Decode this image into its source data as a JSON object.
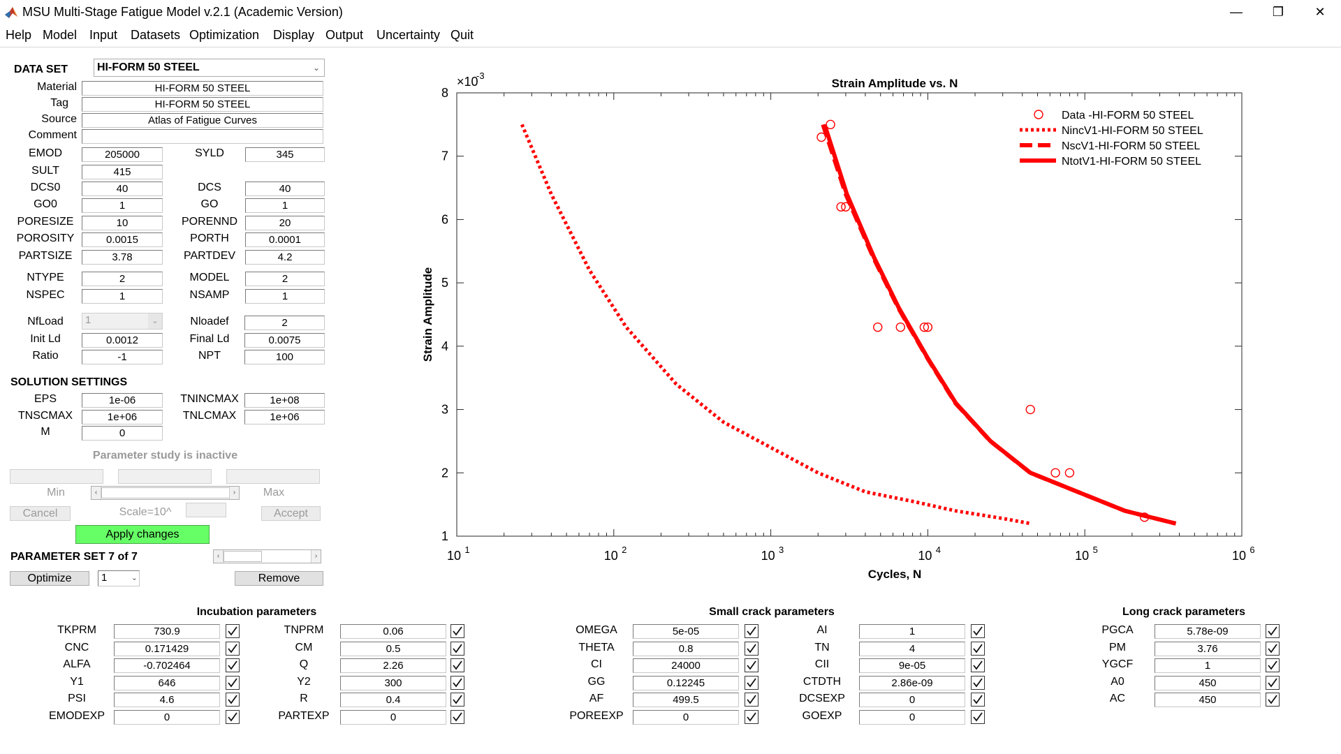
{
  "window": {
    "title": "MSU Multi-Stage Fatigue Model v.2.1 (Academic Version)",
    "minimize": "—",
    "restore": "❐",
    "close": "✕"
  },
  "menu": [
    "Help",
    "Model",
    "Input",
    "Datasets",
    "Optimization",
    "Display",
    "Output",
    "Uncertainty",
    "Quit"
  ],
  "dataset": {
    "label": "DATA SET",
    "selected": "HI-FORM 50 STEEL",
    "material_label": "Material",
    "material": "HI-FORM 50 STEEL",
    "tag_label": "Tag",
    "tag": "HI-FORM 50 STEEL",
    "source_label": "Source",
    "source": "Atlas of Fatigue Curves",
    "comment_label": "Comment",
    "comment": ""
  },
  "props_left": [
    {
      "label": "EMOD",
      "value": "205000"
    },
    {
      "label": "SULT",
      "value": "415"
    },
    {
      "label": "DCS0",
      "value": "40"
    },
    {
      "label": "GO0",
      "value": "1"
    },
    {
      "label": "PORESIZE",
      "value": "10"
    },
    {
      "label": "POROSITY",
      "value": "0.0015"
    },
    {
      "label": "PARTSIZE",
      "value": "3.78"
    },
    {
      "label": "NTYPE",
      "value": "2"
    },
    {
      "label": "NSPEC",
      "value": "1"
    }
  ],
  "props_right": [
    {
      "label": "SYLD",
      "value": "345"
    },
    {
      "label": "DCS",
      "value": "40"
    },
    {
      "label": "GO",
      "value": "1"
    },
    {
      "label": "PORENND",
      "value": "20"
    },
    {
      "label": "PORTH",
      "value": "0.0001"
    },
    {
      "label": "PARTDEV",
      "value": "4.2"
    },
    {
      "label": "MODEL",
      "value": "2"
    },
    {
      "label": "NSAMP",
      "value": "1"
    }
  ],
  "loading": {
    "nfload_label": "NfLoad",
    "nfload": "1",
    "initld_label": "Init Ld",
    "initld": "0.0012",
    "ratio_label": "Ratio",
    "ratio": "-1",
    "nloadef_label": "Nloadef",
    "nloadef": "2",
    "finalld_label": "Final Ld",
    "finalld": "0.0075",
    "npt_label": "NPT",
    "npt": "100"
  },
  "solution": {
    "header": "SOLUTION SETTINGS",
    "eps_label": "EPS",
    "eps": "1e-06",
    "tnscmax_label": "TNSCMAX",
    "tnscmax": "1e+06",
    "m_label": "M",
    "m": "0",
    "tnincmax_label": "TNINCMAX",
    "tnincmax": "1e+08",
    "tnlcmax_label": "TNLCMAX",
    "tnlcmax": "1e+06"
  },
  "param_study": {
    "status": "Parameter study is inactive",
    "min_label": "Min",
    "max_label": "Max",
    "cancel": "Cancel",
    "scale_label": "Scale=10^",
    "accept": "Accept",
    "apply": "Apply changes"
  },
  "param_set": {
    "label": "PARAMETER SET 7 of 7",
    "optimize": "Optimize",
    "selected": "1",
    "remove": "Remove"
  },
  "chart_data": {
    "type": "scatter",
    "title": "Strain Amplitude vs. N",
    "xlabel": "Cycles, N",
    "ylabel": "Strain Amplitude",
    "xscale": "log",
    "xlim": [
      10,
      1000000
    ],
    "ylim": [
      0.001,
      0.008
    ],
    "y_exponent_label": "×10",
    "y_exponent": "-3",
    "x_ticks": [
      10,
      100,
      1000,
      10000,
      100000,
      1000000
    ],
    "x_tick_bases": [
      "10",
      "10",
      "10",
      "10",
      "10",
      "10"
    ],
    "x_tick_exps": [
      "1",
      "2",
      "3",
      "4",
      "5",
      "6"
    ],
    "y_ticks": [
      0.001,
      0.002,
      0.003,
      0.004,
      0.005,
      0.006,
      0.007,
      0.008
    ],
    "y_tick_labels": [
      "1",
      "2",
      "3",
      "4",
      "5",
      "6",
      "7",
      "8"
    ],
    "legend_position": "top-right",
    "color": "#ff0000",
    "series": [
      {
        "name": "Data -HI-FORM 50 STEEL",
        "style": "markers",
        "points": [
          [
            2100,
            0.0073
          ],
          [
            2400,
            0.0075
          ],
          [
            2800,
            0.0062
          ],
          [
            3000,
            0.0062
          ],
          [
            4800,
            0.0043
          ],
          [
            6700,
            0.0043
          ],
          [
            9500,
            0.0043
          ],
          [
            10000,
            0.0043
          ],
          [
            45000,
            0.003
          ],
          [
            65000,
            0.002
          ],
          [
            80000,
            0.002
          ],
          [
            240000,
            0.0013
          ]
        ]
      },
      {
        "name": "NincV1-HI-FORM 50 STEEL",
        "style": "dotted",
        "points": [
          [
            26,
            0.0075
          ],
          [
            40,
            0.0064
          ],
          [
            70,
            0.0052
          ],
          [
            120,
            0.0043
          ],
          [
            250,
            0.0034
          ],
          [
            500,
            0.0028
          ],
          [
            1000,
            0.0024
          ],
          [
            2000,
            0.002
          ],
          [
            4000,
            0.0017
          ],
          [
            8000,
            0.00155
          ],
          [
            15000,
            0.0014
          ],
          [
            30000,
            0.00128
          ],
          [
            45000,
            0.0012
          ]
        ]
      },
      {
        "name": "NscV1-HI-FORM 50 STEEL",
        "style": "dashed",
        "points": [
          [
            2150,
            0.0075
          ],
          [
            3000,
            0.0064
          ],
          [
            4500,
            0.0054
          ],
          [
            6500,
            0.0046
          ],
          [
            10000,
            0.0038
          ],
          [
            15000,
            0.0031
          ],
          [
            25000,
            0.0025
          ],
          [
            45000,
            0.002
          ],
          [
            90000,
            0.0017
          ],
          [
            180000,
            0.0014
          ],
          [
            380000,
            0.0012
          ]
        ]
      },
      {
        "name": "NtotV1-HI-FORM 50 STEEL",
        "style": "solid",
        "points": [
          [
            2200,
            0.0075
          ],
          [
            3050,
            0.0064
          ],
          [
            4550,
            0.0054
          ],
          [
            6550,
            0.0046
          ],
          [
            10050,
            0.0038
          ],
          [
            15100,
            0.0031
          ],
          [
            25100,
            0.0025
          ],
          [
            45100,
            0.002
          ],
          [
            90000,
            0.0017
          ],
          [
            180000,
            0.0014
          ],
          [
            380000,
            0.0012
          ]
        ]
      }
    ]
  },
  "incubation": {
    "header": "Incubation parameters",
    "col1": [
      {
        "label": "TKPRM",
        "value": "730.9"
      },
      {
        "label": "CNC",
        "value": "0.171429"
      },
      {
        "label": "ALFA",
        "value": "-0.702464"
      },
      {
        "label": "Y1",
        "value": "646"
      },
      {
        "label": "PSI",
        "value": "4.6"
      },
      {
        "label": "EMODEXP",
        "value": "0"
      }
    ],
    "col2": [
      {
        "label": "TNPRM",
        "value": "0.06"
      },
      {
        "label": "CM",
        "value": "0.5"
      },
      {
        "label": "Q",
        "value": "2.26"
      },
      {
        "label": "Y2",
        "value": "300"
      },
      {
        "label": "R",
        "value": "0.4"
      },
      {
        "label": "PARTEXP",
        "value": "0"
      }
    ]
  },
  "smallcrack": {
    "header": "Small crack parameters",
    "col1": [
      {
        "label": "OMEGA",
        "value": "5e-05"
      },
      {
        "label": "THETA",
        "value": "0.8"
      },
      {
        "label": "CI",
        "value": "24000"
      },
      {
        "label": "GG",
        "value": "0.12245"
      },
      {
        "label": "AF",
        "value": "499.5"
      },
      {
        "label": "POREEXP",
        "value": "0"
      }
    ],
    "col2": [
      {
        "label": "AI",
        "value": "1"
      },
      {
        "label": "TN",
        "value": "4"
      },
      {
        "label": "CII",
        "value": "9e-05"
      },
      {
        "label": "CTDTH",
        "value": "2.86e-09"
      },
      {
        "label": "DCSEXP",
        "value": "0"
      },
      {
        "label": "GOEXP",
        "value": "0"
      }
    ]
  },
  "longcrack": {
    "header": "Long crack parameters",
    "col1": [
      {
        "label": "PGCA",
        "value": "5.78e-09"
      },
      {
        "label": "PM",
        "value": "3.76"
      },
      {
        "label": "YGCF",
        "value": "1"
      },
      {
        "label": "A0",
        "value": "450"
      },
      {
        "label": "AC",
        "value": "450"
      }
    ]
  }
}
